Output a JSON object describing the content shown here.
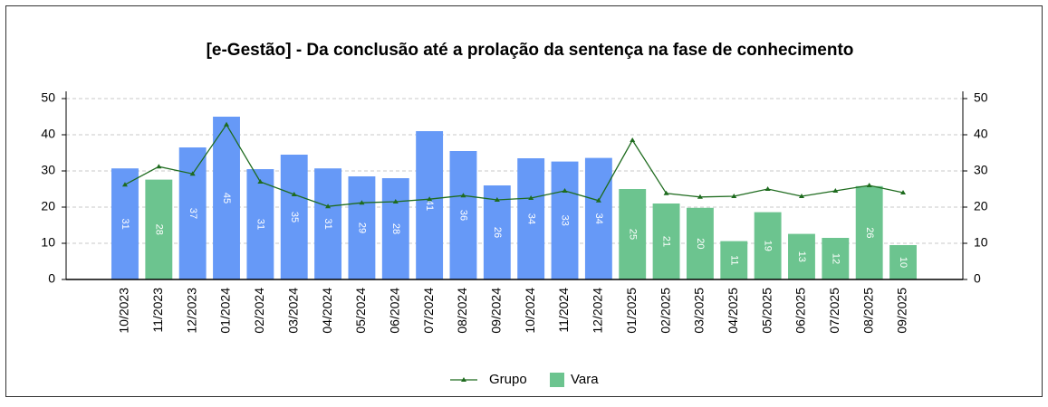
{
  "chart_data": {
    "type": "bar_line",
    "title": "[e-Gestão]  - Da conclusão até a prolação da sentença na fase de conhecimento",
    "categories": [
      "10/2023",
      "11/2023",
      "12/2023",
      "01/2024",
      "02/2024",
      "03/2024",
      "04/2024",
      "05/2024",
      "06/2024",
      "07/2024",
      "08/2024",
      "09/2024",
      "10/2024",
      "11/2024",
      "12/2024",
      "01/2025",
      "02/2025",
      "03/2025",
      "04/2025",
      "05/2025",
      "06/2025",
      "07/2025",
      "08/2025",
      "09/2025"
    ],
    "series": [
      {
        "name": "Grupo",
        "type": "line",
        "color": "#1e6b1e",
        "values": [
          26.2,
          31.2,
          29.2,
          42.8,
          27,
          23.5,
          20.2,
          21.2,
          21.5,
          22.2,
          23.2,
          22,
          22.5,
          24.5,
          21.8,
          38.5,
          23.8,
          22.8,
          23,
          25,
          23,
          24.5,
          26,
          24
        ]
      },
      {
        "name": "Vara",
        "type": "bar",
        "color": "#6cc48f",
        "colors": [
          "#6699f7",
          "#6cc48f",
          "#6699f7",
          "#6699f7",
          "#6699f7",
          "#6699f7",
          "#6699f7",
          "#6699f7",
          "#6699f7",
          "#6699f7",
          "#6699f7",
          "#6699f7",
          "#6699f7",
          "#6699f7",
          "#6699f7",
          "#6cc48f",
          "#6cc48f",
          "#6cc48f",
          "#6cc48f",
          "#6cc48f",
          "#6cc48f",
          "#6cc48f",
          "#6cc48f",
          "#6cc48f"
        ],
        "values": [
          30.7,
          27.6,
          36.5,
          45,
          30.5,
          34.5,
          30.7,
          28.5,
          28,
          41,
          35.5,
          26,
          33.5,
          32.6,
          33.6,
          25,
          21,
          19.8,
          10.6,
          18.6,
          12.6,
          11.5,
          25.8,
          9.5
        ],
        "value_labels": [
          "31",
          "28",
          "37",
          "45",
          "31",
          "35",
          "31",
          "29",
          "28",
          "41",
          "36",
          "26",
          "34",
          "33",
          "34",
          "25",
          "21",
          "20",
          "11",
          "19",
          "13",
          "12",
          "26",
          "10"
        ]
      }
    ],
    "ylim": [
      0,
      50
    ],
    "yticks": [
      0,
      10,
      20,
      30,
      40,
      50
    ],
    "y2lim": [
      0,
      50
    ],
    "y2ticks": [
      0,
      10,
      20,
      30,
      40,
      50
    ],
    "grid": true,
    "legend": "bottom"
  }
}
